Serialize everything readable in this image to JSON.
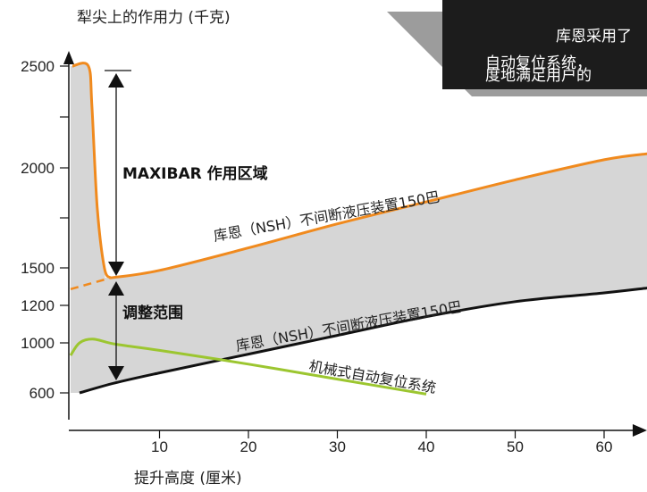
{
  "chart_data": {
    "type": "line",
    "ylabel": "犁尖上的作用力 (千克)",
    "xlabel": "提升高度 (厘米)",
    "xlim": [
      0,
      65
    ],
    "ylim": [
      0,
      2600
    ],
    "x_ticks": [
      "10",
      "20",
      "30",
      "40",
      "50",
      "60"
    ],
    "y_ticks": [
      "2500",
      "2000",
      "1500",
      "1200",
      "1000",
      "600"
    ],
    "grid": false,
    "series": [
      {
        "name": "MAXIBAR",
        "color": "#f08a1e",
        "x": [
          0.2,
          2.0,
          2.4,
          3.0,
          3.8,
          4.5
        ],
        "y": [
          2500,
          2500,
          2300,
          1800,
          1500,
          1420
        ]
      },
      {
        "name": "库恩（NSH）不间断液压装置150巴",
        "color": "#f08a1e",
        "dashed_until_x": 3.5,
        "x": [
          0,
          4.5,
          10,
          20,
          30,
          40,
          50,
          60,
          65
        ],
        "y": [
          1330,
          1420,
          1480,
          1600,
          1720,
          1830,
          1940,
          2040,
          2070
        ]
      },
      {
        "name": "库恩（NSH）不间断液压装置150巴",
        "color": "#111111",
        "x": [
          1,
          5,
          10,
          20,
          30,
          40,
          50,
          60,
          65
        ],
        "y": [
          600,
          680,
          760,
          910,
          1040,
          1140,
          1230,
          1300,
          1340
        ]
      },
      {
        "name": "机械式自动复位系统",
        "color": "#9cc630",
        "x": [
          0,
          1,
          2.5,
          5,
          10,
          20,
          30,
          40
        ],
        "y": [
          900,
          1000,
          1020,
          990,
          940,
          830,
          710,
          580
        ]
      }
    ],
    "annotations": [
      {
        "text": "MAXIBAR 作用区域"
      },
      {
        "text": "调整范围"
      }
    ]
  },
  "callout": {
    "lines": [
      "库恩采用了",
      "自动复位系统，",
      "度地满足用户的"
    ]
  },
  "colors": {
    "band_fill": "#d6d6d6",
    "orange": "#f08a1e",
    "black": "#111111",
    "green": "#9cc630",
    "callout_bg": "#1c1c1c",
    "callout_shadow": "#9c9c9c"
  }
}
